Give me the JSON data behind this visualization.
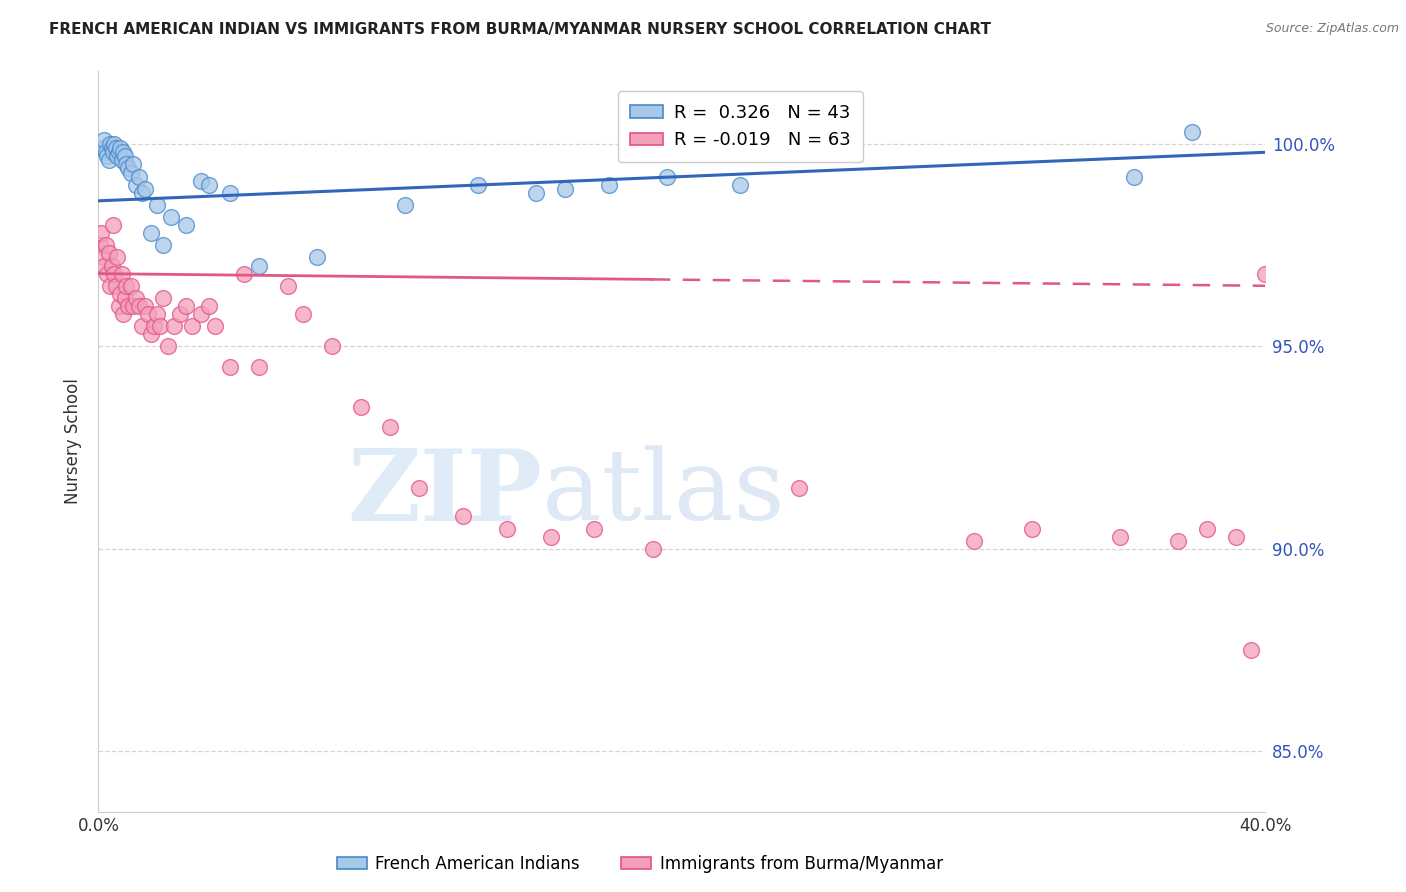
{
  "title": "FRENCH AMERICAN INDIAN VS IMMIGRANTS FROM BURMA/MYANMAR NURSERY SCHOOL CORRELATION CHART",
  "source": "Source: ZipAtlas.com",
  "ylabel": "Nursery School",
  "xlim": [
    0.0,
    40.0
  ],
  "ylim": [
    83.5,
    101.8
  ],
  "blue_color": "#a8c8e8",
  "blue_edge_color": "#4488cc",
  "pink_color": "#f4a0b8",
  "pink_edge_color": "#e05090",
  "blue_line_color": "#3366bb",
  "pink_line_color": "#e05888",
  "r_blue": 0.326,
  "n_blue": 43,
  "r_pink": -0.019,
  "n_pink": 63,
  "legend_label_blue": "French American Indians",
  "legend_label_pink": "Immigrants from Burma/Myanmar",
  "ytick_vals": [
    85.0,
    90.0,
    95.0,
    100.0
  ],
  "ytick_labels": [
    "85.0%",
    "90.0%",
    "95.0%",
    "100.0%"
  ],
  "blue_scatter_x": [
    0.15,
    0.2,
    0.25,
    0.3,
    0.35,
    0.4,
    0.45,
    0.5,
    0.55,
    0.6,
    0.65,
    0.7,
    0.75,
    0.8,
    0.85,
    0.9,
    0.95,
    1.0,
    1.1,
    1.2,
    1.3,
    1.4,
    1.5,
    1.6,
    1.8,
    2.0,
    2.2,
    2.5,
    3.0,
    3.5,
    3.8,
    4.5,
    5.5,
    7.5,
    10.5,
    13.0,
    15.0,
    16.0,
    17.5,
    19.5,
    22.0,
    35.5,
    37.5
  ],
  "blue_scatter_y": [
    99.9,
    100.1,
    99.8,
    99.7,
    99.6,
    100.0,
    99.9,
    99.8,
    100.0,
    99.9,
    99.7,
    99.8,
    99.9,
    99.6,
    99.8,
    99.7,
    99.5,
    99.4,
    99.3,
    99.5,
    99.0,
    99.2,
    98.8,
    98.9,
    97.8,
    98.5,
    97.5,
    98.2,
    98.0,
    99.1,
    99.0,
    98.8,
    97.0,
    97.2,
    98.5,
    99.0,
    98.8,
    98.9,
    99.0,
    99.2,
    99.0,
    99.2,
    100.3
  ],
  "pink_scatter_x": [
    0.05,
    0.1,
    0.15,
    0.2,
    0.25,
    0.3,
    0.35,
    0.4,
    0.45,
    0.5,
    0.55,
    0.6,
    0.65,
    0.7,
    0.75,
    0.8,
    0.85,
    0.9,
    0.95,
    1.0,
    1.1,
    1.2,
    1.3,
    1.4,
    1.5,
    1.6,
    1.7,
    1.8,
    1.9,
    2.0,
    2.1,
    2.2,
    2.4,
    2.6,
    2.8,
    3.0,
    3.2,
    3.5,
    3.8,
    4.0,
    4.5,
    5.0,
    5.5,
    6.5,
    7.0,
    8.0,
    9.0,
    10.0,
    11.0,
    12.5,
    14.0,
    15.5,
    17.0,
    19.0,
    24.0,
    30.0,
    32.0,
    35.0,
    37.0,
    38.0,
    39.0,
    39.5,
    40.0
  ],
  "pink_scatter_y": [
    97.5,
    97.8,
    97.2,
    97.0,
    97.5,
    96.8,
    97.3,
    96.5,
    97.0,
    98.0,
    96.8,
    96.5,
    97.2,
    96.0,
    96.3,
    96.8,
    95.8,
    96.2,
    96.5,
    96.0,
    96.5,
    96.0,
    96.2,
    96.0,
    95.5,
    96.0,
    95.8,
    95.3,
    95.5,
    95.8,
    95.5,
    96.2,
    95.0,
    95.5,
    95.8,
    96.0,
    95.5,
    95.8,
    96.0,
    95.5,
    94.5,
    96.8,
    94.5,
    96.5,
    95.8,
    95.0,
    93.5,
    93.0,
    91.5,
    90.8,
    90.5,
    90.3,
    90.5,
    90.0,
    91.5,
    90.2,
    90.5,
    90.3,
    90.2,
    90.5,
    90.3,
    87.5,
    96.8
  ],
  "blue_trend_x0": 0.0,
  "blue_trend_y0": 98.6,
  "blue_trend_x1": 40.0,
  "blue_trend_y1": 99.8,
  "pink_trend_x0": 0.0,
  "pink_trend_y0": 96.8,
  "pink_trend_x1": 40.0,
  "pink_trend_y1": 96.5,
  "pink_solid_end": 19.0
}
